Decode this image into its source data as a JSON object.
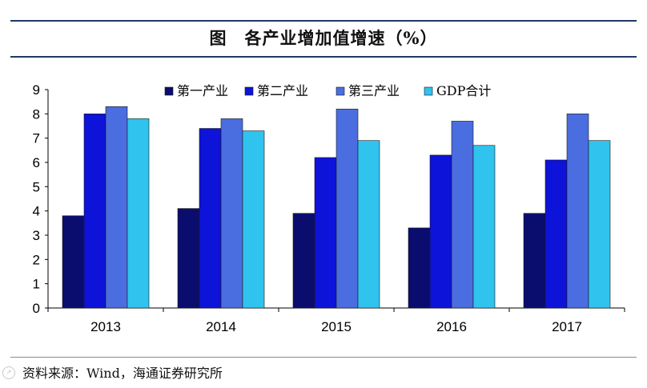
{
  "header": {
    "figure_label": "图",
    "title": "各产业增加值增速（%）"
  },
  "source": "资料来源：Wind，海通证券研究所",
  "watermark": {
    "icon": "watermark-icon",
    "color": "#c8c8c8"
  },
  "chart_data": {
    "type": "bar",
    "title": "各产业增加值增速（%）",
    "xlabel": "",
    "ylabel": "",
    "ylim": [
      0,
      9
    ],
    "yticks": [
      0,
      1,
      2,
      3,
      4,
      5,
      6,
      7,
      8,
      9
    ],
    "categories": [
      "2013",
      "2014",
      "2015",
      "2016",
      "2017"
    ],
    "legend_position": "top",
    "grid": false,
    "series": [
      {
        "name": "第一产业",
        "color": "#0a0d6e",
        "values": [
          3.8,
          4.1,
          3.9,
          3.3,
          3.9
        ]
      },
      {
        "name": "第二产业",
        "color": "#0d13d9",
        "values": [
          8.0,
          7.4,
          6.2,
          6.3,
          6.1
        ]
      },
      {
        "name": "第三产业",
        "color": "#4a6de0",
        "values": [
          8.3,
          7.8,
          8.2,
          7.7,
          8.0
        ]
      },
      {
        "name": "GDP合计",
        "color": "#2fc3ee",
        "values": [
          7.8,
          7.3,
          6.9,
          6.7,
          6.9
        ]
      }
    ]
  }
}
